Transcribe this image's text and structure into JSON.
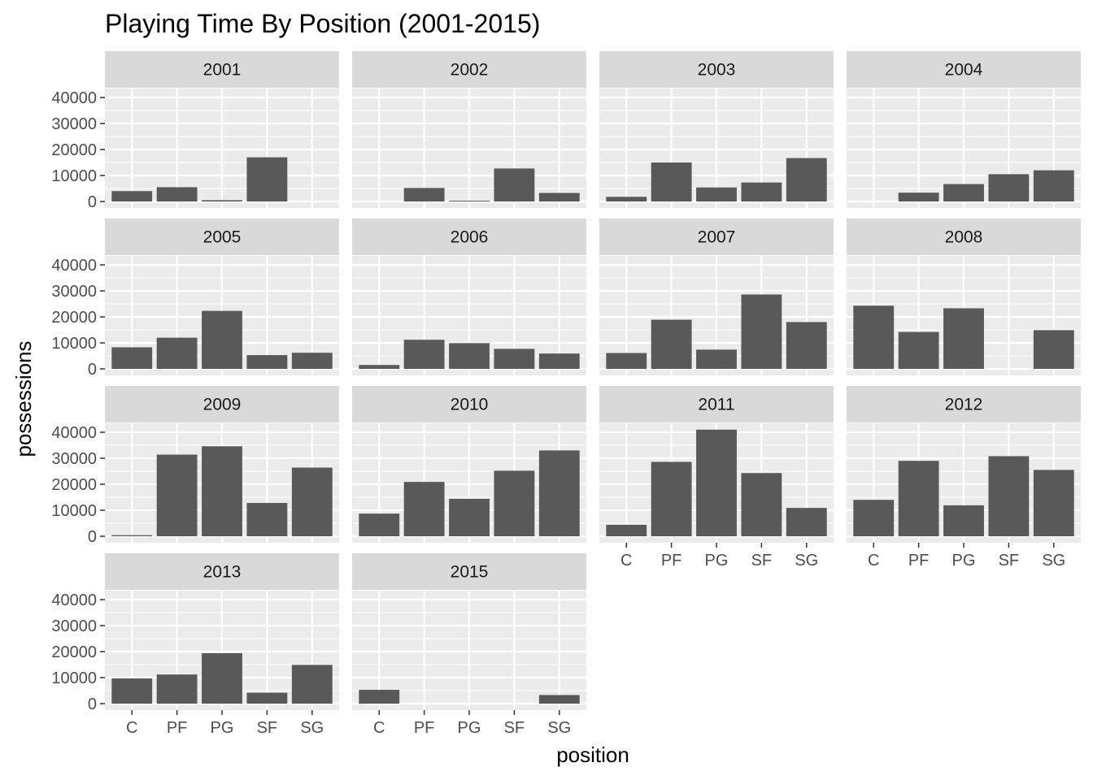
{
  "chart_data": {
    "type": "bar",
    "title": "Playing Time By Position (2001-2015)",
    "xlabel": "position",
    "ylabel": "possessions",
    "categories": [
      "C",
      "PF",
      "PG",
      "SF",
      "SG"
    ],
    "ylim": [
      0,
      40000
    ],
    "yticks": [
      "0",
      "10000",
      "20000",
      "30000",
      "40000"
    ],
    "facet_layout": "wrap, 4 columns",
    "grid": true,
    "legend": "none",
    "colors": {
      "bar": "#595959",
      "panel": "#ebebeb",
      "gridline": "#ffffff",
      "strip": "#d9d9d9"
    },
    "facets": [
      {
        "label": "2001",
        "values": [
          4000,
          5500,
          500,
          17000,
          null
        ]
      },
      {
        "label": "2002",
        "values": [
          null,
          5200,
          300,
          12700,
          3300
        ]
      },
      {
        "label": "2003",
        "values": [
          1800,
          15000,
          5400,
          7300,
          16700
        ]
      },
      {
        "label": "2004",
        "values": [
          null,
          3400,
          6700,
          10500,
          12000
        ]
      },
      {
        "label": "2005",
        "values": [
          8300,
          12000,
          22300,
          5300,
          6200
        ]
      },
      {
        "label": "2006",
        "values": [
          1500,
          11200,
          9900,
          7700,
          5900
        ]
      },
      {
        "label": "2007",
        "values": [
          6100,
          18900,
          7400,
          28600,
          18000
        ]
      },
      {
        "label": "2008",
        "values": [
          24300,
          14200,
          23300,
          null,
          14900
        ]
      },
      {
        "label": "2009",
        "values": [
          400,
          31400,
          34600,
          12800,
          26400
        ]
      },
      {
        "label": "2010",
        "values": [
          8700,
          20900,
          14400,
          25200,
          33000
        ]
      },
      {
        "label": "2011",
        "values": [
          4400,
          28600,
          41000,
          24300,
          10900
        ]
      },
      {
        "label": "2012",
        "values": [
          14000,
          29000,
          11900,
          30800,
          25500
        ]
      },
      {
        "label": "2013",
        "values": [
          9700,
          11200,
          19400,
          4200,
          14900
        ]
      },
      {
        "label": "2015",
        "values": [
          5300,
          null,
          null,
          null,
          3300
        ]
      }
    ]
  }
}
